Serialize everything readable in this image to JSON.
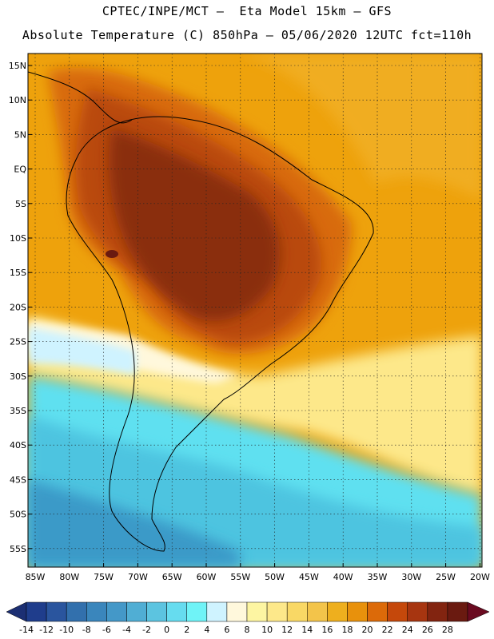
{
  "header": {
    "title_line1": "CPTEC/INPE/MCT –  Eta Model 15km – GFS",
    "title_line2": "Absolute Temperature (C) 850hPa – 05/06/2020 12UTC fct=110h"
  },
  "map": {
    "lat_labels": [
      "15N",
      "10N",
      "5N",
      "EQ",
      "5S",
      "10S",
      "15S",
      "20S",
      "25S",
      "30S",
      "35S",
      "40S",
      "45S",
      "50S",
      "55S"
    ],
    "lon_labels": [
      "85W",
      "80W",
      "75W",
      "70W",
      "65W",
      "60W",
      "55W",
      "50W",
      "45W",
      "40W",
      "35W",
      "30W",
      "25W",
      "20W"
    ],
    "colors": {
      "ocean_warm": "#eea20c",
      "hot": "#d86a10",
      "hotter": "#b94a10",
      "hottest": "#8a2e0e",
      "cool_yellow": "#fde88a",
      "cold_cyan": "#5fe0f0",
      "cold_blue": "#4ab8d6",
      "coast": "#000000"
    }
  },
  "colorbar": {
    "labels": [
      "-14",
      "-12",
      "-10",
      "-8",
      "-6",
      "-4",
      "-2",
      "0",
      "2",
      "4",
      "6",
      "8",
      "10",
      "12",
      "14",
      "16",
      "18",
      "20",
      "22",
      "24",
      "26",
      "28"
    ],
    "colors": [
      "#1f3d8c",
      "#2a559e",
      "#3270ad",
      "#3a86bc",
      "#4498c8",
      "#50aed4",
      "#5cc4e0",
      "#66dcef",
      "#6ff3f7",
      "#cff3ff",
      "#fff8dc",
      "#fdf5a2",
      "#fde88a",
      "#f9d865",
      "#f3c44a",
      "#eeaf1e",
      "#e8910c",
      "#dc6a09",
      "#c5480b",
      "#a73510",
      "#822410",
      "#6a1a10"
    ],
    "end_left_color": "#1c2f73",
    "end_right_color": "#6a0a20"
  }
}
